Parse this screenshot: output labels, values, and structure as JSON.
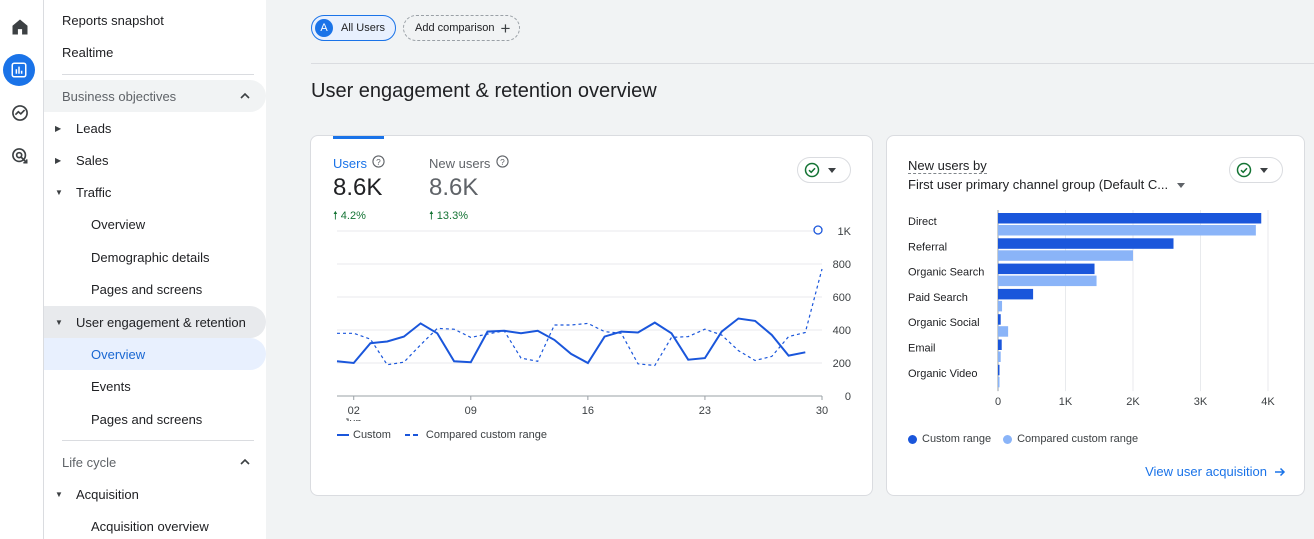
{
  "nav": {
    "reports_snapshot": "Reports snapshot",
    "realtime": "Realtime",
    "business_objectives": "Business objectives",
    "leads": "Leads",
    "sales": "Sales",
    "traffic": "Traffic",
    "traffic_overview": "Overview",
    "demographic_details": "Demographic details",
    "pages_and_screens": "Pages and screens",
    "user_engagement": "User engagement & retention",
    "ue_overview": "Overview",
    "events": "Events",
    "ue_pages_and_screens": "Pages and screens",
    "life_cycle": "Life cycle",
    "acquisition": "Acquisition",
    "acquisition_overview": "Acquisition overview"
  },
  "toolbar": {
    "all_users_avatar": "A",
    "all_users": "All Users",
    "add_comparison": "Add comparison"
  },
  "page": {
    "title": "User engagement & retention overview"
  },
  "card1": {
    "users_label": "Users",
    "users_value": "8.6K",
    "users_delta": "4.2%",
    "new_users_label": "New users",
    "new_users_value": "8.6K",
    "new_users_delta": "13.3%",
    "legend_custom": "Custom",
    "legend_compared": "Compared custom range"
  },
  "card2": {
    "title": "New users by",
    "subtitle": "First user primary channel group (Default C...",
    "legend_custom": "Custom range",
    "legend_compared": "Compared custom range",
    "view_link": "View user acquisition"
  },
  "colors": {
    "primary": "#1a73e8",
    "series_custom": "#1a56db",
    "series_compared": "#8ab4f8",
    "positive": "#137333"
  },
  "chart_data": [
    {
      "type": "line",
      "x_ticks": [
        "02",
        "09",
        "16",
        "23",
        "30"
      ],
      "x_sub_label": "Jun",
      "y_ticks": [
        "1K",
        "800",
        "600",
        "400",
        "200",
        "0"
      ],
      "ylim": [
        0,
        1000
      ],
      "grid": true,
      "y_axis_side": "right",
      "legend_placement": "bottom-left",
      "series": [
        {
          "name": "Custom",
          "style": "solid",
          "values": [
            210,
            200,
            320,
            330,
            360,
            440,
            380,
            210,
            205,
            390,
            395,
            380,
            395,
            340,
            255,
            200,
            360,
            390,
            385,
            445,
            380,
            220,
            230,
            390,
            470,
            455,
            370,
            245,
            265
          ]
        },
        {
          "name": "Compared custom range",
          "style": "dashed",
          "values": [
            380,
            380,
            345,
            190,
            205,
            310,
            410,
            405,
            355,
            375,
            395,
            230,
            210,
            430,
            430,
            440,
            390,
            380,
            195,
            185,
            355,
            360,
            405,
            370,
            275,
            215,
            240,
            360,
            385,
            770
          ]
        }
      ],
      "marker_value": 1000
    },
    {
      "type": "bar",
      "orientation": "horizontal",
      "categories": [
        "Direct",
        "Referral",
        "Organic Search",
        "Paid Search",
        "Organic Social",
        "Email",
        "Organic Video"
      ],
      "series": [
        {
          "name": "Custom range",
          "values": [
            3900,
            2600,
            1430,
            520,
            40,
            55,
            15
          ]
        },
        {
          "name": "Compared custom range",
          "values": [
            3820,
            2000,
            1460,
            60,
            150,
            40,
            15
          ]
        }
      ],
      "x_ticks": [
        "0",
        "1K",
        "2K",
        "3K",
        "4K"
      ],
      "xlim": [
        0,
        4000
      ],
      "grid": true,
      "legend_placement": "bottom-left"
    }
  ]
}
